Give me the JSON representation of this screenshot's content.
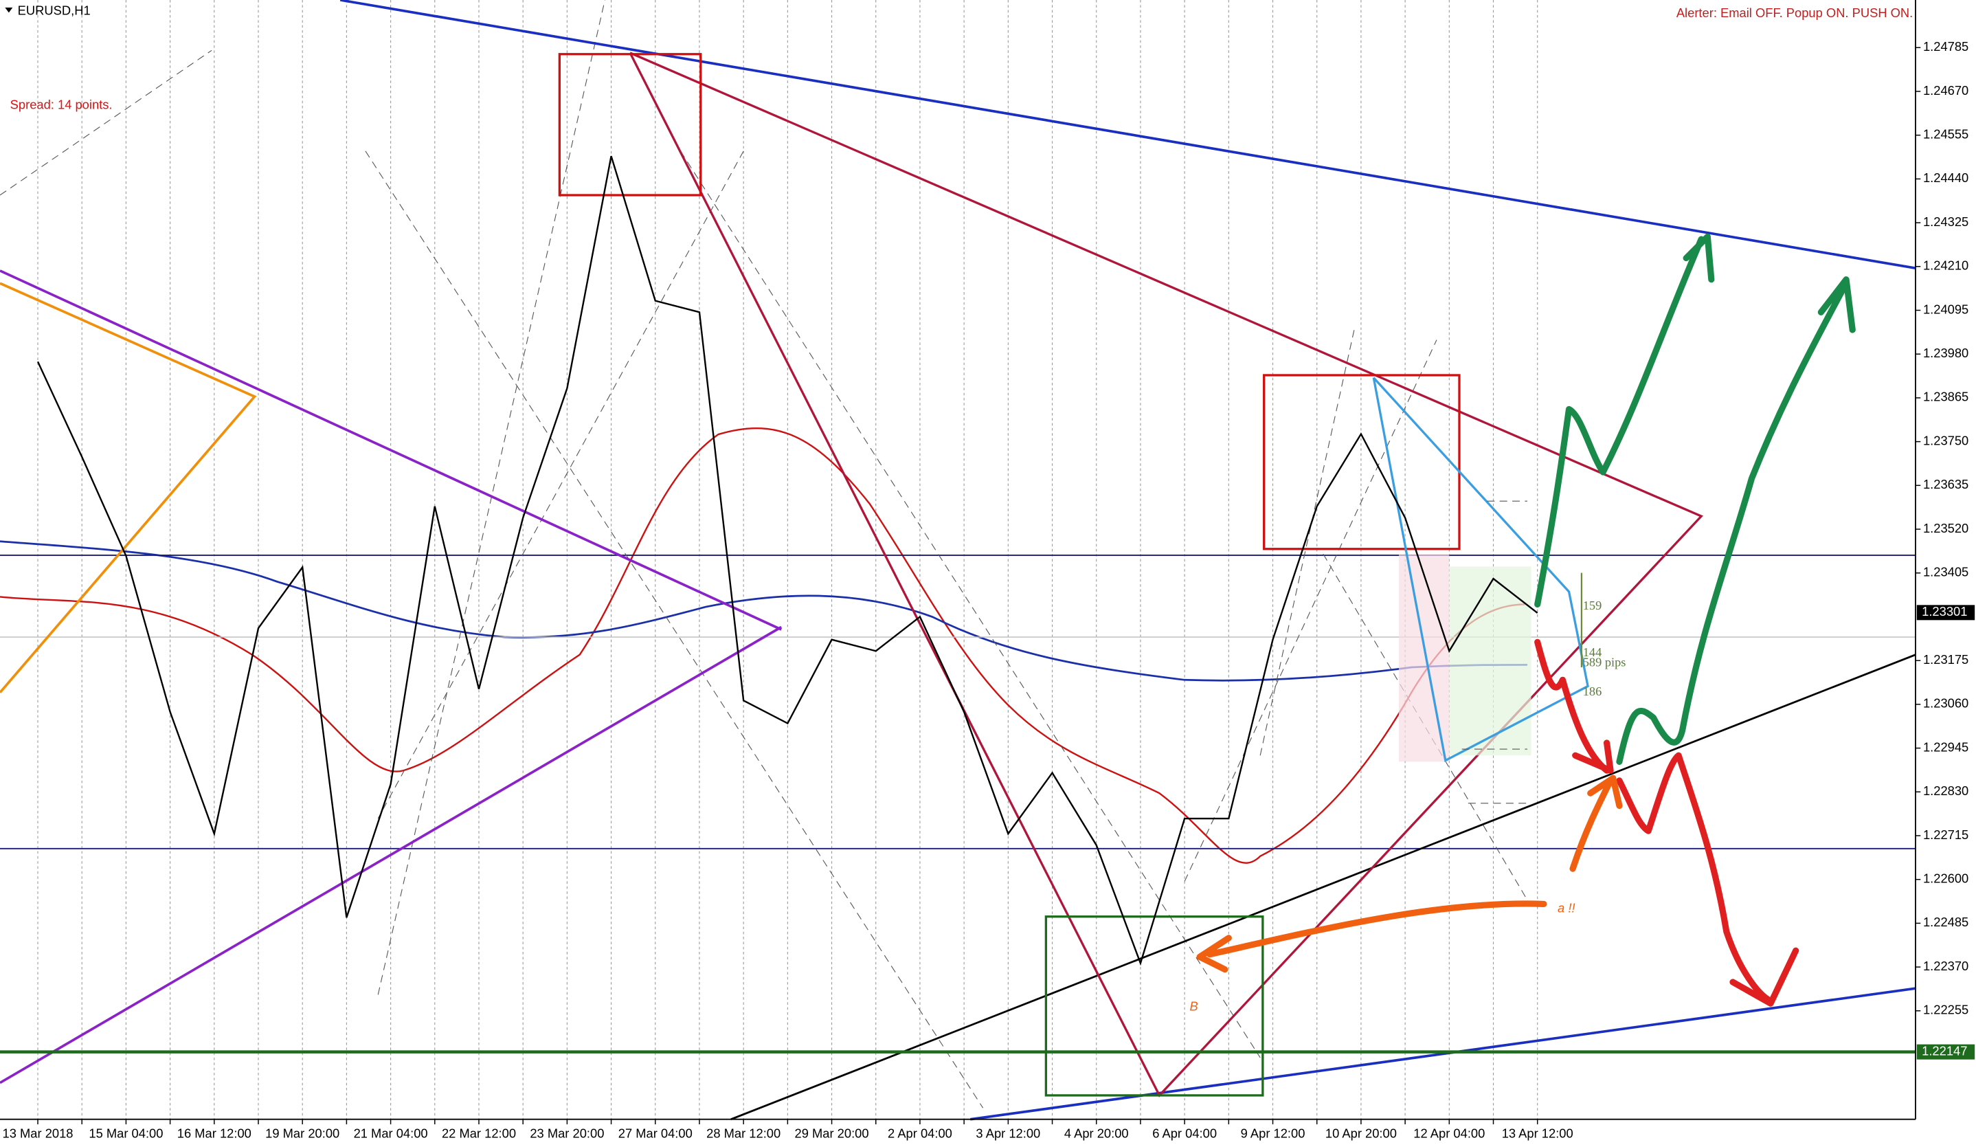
{
  "header": {
    "symbol": "EURUSD,H1",
    "alerter": "Alerter:  Email OFF.  Popup ON.  PUSH ON.",
    "spread": "Spread: 14 points."
  },
  "chart_data": {
    "type": "line",
    "categories": [
      "13 Mar 2018",
      null,
      "15 Mar 04:00",
      null,
      "16 Mar 12:00",
      null,
      "19 Mar 20:00",
      null,
      "21 Mar 04:00",
      null,
      "22 Mar 12:00",
      null,
      "23 Mar 20:00",
      null,
      "27 Mar 04:00",
      null,
      "28 Mar 12:00",
      null,
      "29 Mar 20:00",
      null,
      "2 Apr 04:00",
      null,
      "3 Apr 12:00",
      null,
      "4 Apr 20:00",
      null,
      "6 Apr 04:00",
      null,
      "9 Apr 12:00",
      null,
      "10 Apr 20:00",
      null,
      "12 Apr 04:00",
      null,
      "13 Apr 12:00"
    ],
    "series": [
      {
        "name": "EURUSD",
        "color": "#000000",
        "values": [
          1.2396,
          1.2371,
          1.2345,
          1.2304,
          1.2272,
          1.2326,
          1.2342,
          1.225,
          1.2285,
          1.2358,
          1.231,
          1.2355,
          1.2389,
          1.245,
          1.2412,
          1.2409,
          1.2307,
          1.2301,
          1.2323,
          1.232,
          1.2329,
          1.2304,
          1.2272,
          1.2288,
          1.2269,
          1.2238,
          1.2276,
          1.2276,
          1.2323,
          1.2358,
          1.2377,
          1.2355,
          1.232,
          1.2339,
          1.233
        ]
      }
    ],
    "ylim": [
      1.2197,
      1.2491
    ],
    "yticks": [
      {
        "value": 1.24785,
        "label": "1.24785"
      },
      {
        "value": 1.2467,
        "label": "1.24670"
      },
      {
        "value": 1.24555,
        "label": "1.24555"
      },
      {
        "value": 1.2444,
        "label": "1.24440"
      },
      {
        "value": 1.24325,
        "label": "1.24325"
      },
      {
        "value": 1.2421,
        "label": "1.24210"
      },
      {
        "value": 1.24095,
        "label": "1.24095"
      },
      {
        "value": 1.2398,
        "label": "1.23980"
      },
      {
        "value": 1.23865,
        "label": "1.23865"
      },
      {
        "value": 1.2375,
        "label": "1.23750"
      },
      {
        "value": 1.23635,
        "label": "1.23635"
      },
      {
        "value": 1.2352,
        "label": "1.23520"
      },
      {
        "value": 1.23405,
        "label": "1.23405"
      },
      {
        "value": 1.23175,
        "label": "1.23175"
      },
      {
        "value": 1.2306,
        "label": "1.23060"
      },
      {
        "value": 1.22945,
        "label": "1.22945"
      },
      {
        "value": 1.2283,
        "label": "1.22830"
      },
      {
        "value": 1.22715,
        "label": "1.22715"
      },
      {
        "value": 1.226,
        "label": "1.22600"
      },
      {
        "value": 1.22485,
        "label": "1.22485"
      },
      {
        "value": 1.2237,
        "label": "1.22370"
      },
      {
        "value": 1.22255,
        "label": "1.22255"
      }
    ],
    "price_labels": [
      {
        "value": 1.23301,
        "label": "1.23301",
        "color": "#000000"
      },
      {
        "value": 1.22147,
        "label": "1.22147",
        "color": "#1e6b1e"
      }
    ],
    "annotations": [
      "159",
      "144",
      "589 pips",
      "186",
      "a !!",
      "B"
    ],
    "grid": true
  }
}
